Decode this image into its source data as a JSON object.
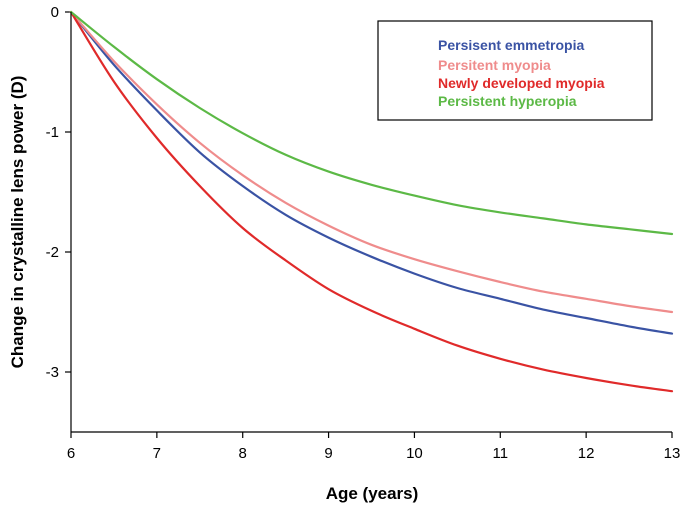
{
  "chart_data": {
    "type": "line",
    "title": "",
    "xlabel": "Age (years)",
    "ylabel": "Change in crystalline lens power (D)",
    "xlim": [
      6,
      13
    ],
    "ylim": [
      -3.5,
      0
    ],
    "xticks": [
      6,
      7,
      8,
      9,
      10,
      11,
      12,
      13
    ],
    "yticks": [
      0,
      -1,
      -2,
      -3
    ],
    "x": [
      6,
      6.5,
      7,
      7.5,
      8,
      8.5,
      9,
      9.5,
      10,
      10.5,
      11,
      11.5,
      12,
      12.5,
      13
    ],
    "legend_position": "top-right",
    "series": [
      {
        "name": "Persisent emmetropia",
        "color": "#3a53a4",
        "values": [
          0,
          -0.44,
          -0.82,
          -1.17,
          -1.45,
          -1.69,
          -1.88,
          -2.04,
          -2.18,
          -2.3,
          -2.39,
          -2.48,
          -2.55,
          -2.62,
          -2.68
        ]
      },
      {
        "name": "Persitent myopia",
        "color": "#ef8c8c",
        "values": [
          0,
          -0.41,
          -0.77,
          -1.09,
          -1.36,
          -1.59,
          -1.78,
          -1.94,
          -2.06,
          -2.16,
          -2.25,
          -2.33,
          -2.39,
          -2.45,
          -2.5
        ]
      },
      {
        "name": "Newly developed myopia",
        "color": "#e02a2a",
        "values": [
          0,
          -0.58,
          -1.05,
          -1.45,
          -1.8,
          -2.07,
          -2.31,
          -2.49,
          -2.64,
          -2.78,
          -2.89,
          -2.98,
          -3.05,
          -3.11,
          -3.16
        ]
      },
      {
        "name": "Persistent hyperopia",
        "color": "#5cb946",
        "values": [
          0,
          -0.29,
          -0.56,
          -0.8,
          -1.01,
          -1.19,
          -1.33,
          -1.44,
          -1.53,
          -1.61,
          -1.67,
          -1.72,
          -1.77,
          -1.81,
          -1.85
        ]
      }
    ]
  }
}
